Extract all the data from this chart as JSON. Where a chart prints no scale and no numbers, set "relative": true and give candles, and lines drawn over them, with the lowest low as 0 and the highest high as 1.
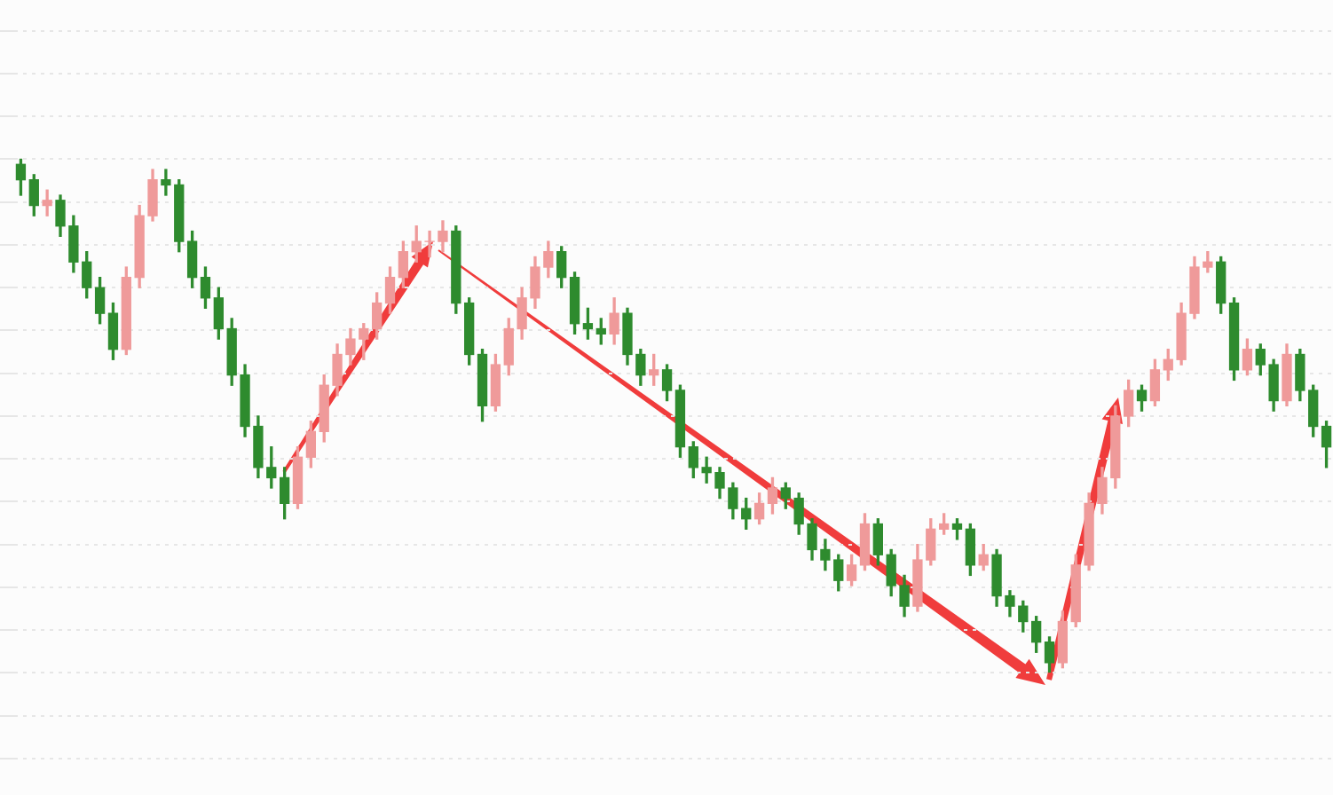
{
  "chart_data": {
    "type": "candlestick",
    "relative": true,
    "grid": "y",
    "categories": [
      null,
      null,
      null,
      null,
      null,
      null,
      null,
      null,
      null,
      null,
      null,
      null,
      null,
      null,
      null,
      null,
      null,
      null,
      null,
      null,
      null,
      null,
      null,
      null,
      null,
      null,
      null,
      null,
      null,
      null,
      null,
      null,
      null,
      null,
      null,
      null,
      null,
      null,
      null,
      null,
      null,
      null,
      null,
      null,
      null,
      null,
      null,
      null,
      null,
      null,
      null,
      null,
      null,
      null,
      null,
      null,
      null,
      null,
      null,
      null,
      null,
      null,
      null,
      null,
      null,
      null,
      null,
      null,
      null,
      null,
      null,
      null,
      null,
      null,
      null,
      null,
      null,
      null,
      null,
      null,
      null,
      null,
      null,
      null,
      null,
      null,
      null,
      null,
      null,
      null,
      null,
      null,
      null,
      null,
      null,
      null,
      null,
      null,
      null,
      null
    ],
    "colors": [
      "#2e8b2e",
      "#2e8b2e",
      "#ef9a9a",
      "#2e8b2e",
      "#2e8b2e",
      "#2e8b2e",
      "#2e8b2e",
      "#2e8b2e",
      "#ef9a9a",
      "#ef9a9a",
      "#ef9a9a",
      "#2e8b2e",
      "#2e8b2e",
      "#2e8b2e",
      "#2e8b2e",
      "#2e8b2e",
      "#2e8b2e",
      "#2e8b2e",
      "#2e8b2e",
      "#2e8b2e",
      "#2e8b2e",
      "#ef9a9a",
      "#ef9a9a",
      "#ef9a9a",
      "#ef9a9a",
      "#ef9a9a",
      "#ef9a9a",
      "#ef9a9a",
      "#ef9a9a",
      "#ef9a9a",
      "#ef9a9a",
      "#ef9a9a",
      "#ef9a9a",
      "#2e8b2e",
      "#2e8b2e",
      "#2e8b2e",
      "#ef9a9a",
      "#ef9a9a",
      "#ef9a9a",
      "#ef9a9a",
      "#ef9a9a",
      "#2e8b2e",
      "#2e8b2e",
      "#2e8b2e",
      "#2e8b2e",
      "#ef9a9a",
      "#2e8b2e",
      "#2e8b2e",
      "#ef9a9a",
      "#2e8b2e",
      "#2e8b2e",
      "#2e8b2e",
      "#2e8b2e",
      "#2e8b2e",
      "#2e8b2e",
      "#2e8b2e",
      "#ef9a9a",
      "#ef9a9a",
      "#2e8b2e",
      "#2e8b2e",
      "#2e8b2e",
      "#2e8b2e",
      "#2e8b2e",
      "#ef9a9a",
      "#ef9a9a",
      "#2e8b2e",
      "#2e8b2e",
      "#2e8b2e",
      "#ef9a9a",
      "#ef9a9a",
      "#ef9a9a",
      "#2e8b2e",
      "#2e8b2e",
      "#ef9a9a",
      "#2e8b2e",
      "#2e8b2e",
      "#2e8b2e",
      "#2e8b2e",
      "#2e8b2e",
      "#ef9a9a",
      "#ef9a9a",
      "#ef9a9a",
      "#ef9a9a",
      "#ef9a9a",
      "#ef9a9a",
      "#2e8b2e",
      "#ef9a9a",
      "#ef9a9a",
      "#ef9a9a",
      "#ef9a9a",
      "#ef9a9a",
      "#2e8b2e",
      "#2e8b2e",
      "#ef9a9a",
      "#2e8b2e",
      "#2e8b2e",
      "#ef9a9a",
      "#2e8b2e",
      "#2e8b2e",
      "#2e8b2e"
    ],
    "ohlc": [
      [
        0.99,
        1.0,
        0.93,
        0.96
      ],
      [
        0.96,
        0.97,
        0.89,
        0.91
      ],
      [
        0.91,
        0.94,
        0.89,
        0.92
      ],
      [
        0.92,
        0.93,
        0.85,
        0.87
      ],
      [
        0.87,
        0.89,
        0.78,
        0.8
      ],
      [
        0.8,
        0.82,
        0.73,
        0.75
      ],
      [
        0.75,
        0.77,
        0.68,
        0.7
      ],
      [
        0.7,
        0.72,
        0.61,
        0.63
      ],
      [
        0.63,
        0.79,
        0.62,
        0.77
      ],
      [
        0.77,
        0.91,
        0.75,
        0.89
      ],
      [
        0.89,
        0.98,
        0.88,
        0.96
      ],
      [
        0.96,
        0.98,
        0.93,
        0.95
      ],
      [
        0.95,
        0.96,
        0.82,
        0.84
      ],
      [
        0.84,
        0.86,
        0.75,
        0.77
      ],
      [
        0.77,
        0.79,
        0.71,
        0.73
      ],
      [
        0.73,
        0.75,
        0.65,
        0.67
      ],
      [
        0.67,
        0.69,
        0.56,
        0.58
      ],
      [
        0.58,
        0.6,
        0.46,
        0.48
      ],
      [
        0.48,
        0.5,
        0.38,
        0.4
      ],
      [
        0.4,
        0.44,
        0.36,
        0.38
      ],
      [
        0.38,
        0.4,
        0.3,
        0.33
      ],
      [
        0.33,
        0.44,
        0.32,
        0.42
      ],
      [
        0.42,
        0.49,
        0.4,
        0.47
      ],
      [
        0.47,
        0.58,
        0.45,
        0.56
      ],
      [
        0.56,
        0.64,
        0.54,
        0.62
      ],
      [
        0.62,
        0.67,
        0.6,
        0.65
      ],
      [
        0.65,
        0.68,
        0.61,
        0.67
      ],
      [
        0.67,
        0.74,
        0.65,
        0.72
      ],
      [
        0.72,
        0.79,
        0.7,
        0.77
      ],
      [
        0.77,
        0.84,
        0.75,
        0.82
      ],
      [
        0.82,
        0.87,
        0.8,
        0.84
      ],
      [
        0.84,
        0.86,
        0.81,
        0.84
      ],
      [
        0.84,
        0.88,
        0.82,
        0.86
      ],
      [
        0.86,
        0.87,
        0.7,
        0.72
      ],
      [
        0.72,
        0.73,
        0.6,
        0.62
      ],
      [
        0.62,
        0.63,
        0.49,
        0.52
      ],
      [
        0.52,
        0.62,
        0.51,
        0.6
      ],
      [
        0.6,
        0.69,
        0.58,
        0.67
      ],
      [
        0.67,
        0.75,
        0.65,
        0.73
      ],
      [
        0.73,
        0.81,
        0.71,
        0.79
      ],
      [
        0.79,
        0.84,
        0.77,
        0.82
      ],
      [
        0.82,
        0.83,
        0.75,
        0.77
      ],
      [
        0.77,
        0.78,
        0.66,
        0.68
      ],
      [
        0.68,
        0.71,
        0.65,
        0.67
      ],
      [
        0.67,
        0.69,
        0.64,
        0.66
      ],
      [
        0.66,
        0.73,
        0.64,
        0.7
      ],
      [
        0.7,
        0.71,
        0.6,
        0.62
      ],
      [
        0.62,
        0.63,
        0.56,
        0.58
      ],
      [
        0.58,
        0.62,
        0.56,
        0.59
      ],
      [
        0.59,
        0.6,
        0.53,
        0.55
      ],
      [
        0.55,
        0.56,
        0.42,
        0.44
      ],
      [
        0.44,
        0.45,
        0.38,
        0.4
      ],
      [
        0.4,
        0.42,
        0.37,
        0.39
      ],
      [
        0.39,
        0.4,
        0.34,
        0.36
      ],
      [
        0.36,
        0.37,
        0.3,
        0.32
      ],
      [
        0.32,
        0.34,
        0.28,
        0.3
      ],
      [
        0.3,
        0.35,
        0.29,
        0.33
      ],
      [
        0.33,
        0.38,
        0.31,
        0.36
      ],
      [
        0.36,
        0.37,
        0.32,
        0.34
      ],
      [
        0.34,
        0.35,
        0.27,
        0.29
      ],
      [
        0.29,
        0.3,
        0.22,
        0.24
      ],
      [
        0.24,
        0.26,
        0.2,
        0.22
      ],
      [
        0.22,
        0.23,
        0.16,
        0.18
      ],
      [
        0.18,
        0.23,
        0.17,
        0.21
      ],
      [
        0.21,
        0.31,
        0.2,
        0.29
      ],
      [
        0.29,
        0.3,
        0.21,
        0.23
      ],
      [
        0.23,
        0.24,
        0.15,
        0.17
      ],
      [
        0.17,
        0.19,
        0.11,
        0.13
      ],
      [
        0.13,
        0.25,
        0.12,
        0.22
      ],
      [
        0.22,
        0.3,
        0.21,
        0.28
      ],
      [
        0.28,
        0.31,
        0.27,
        0.29
      ],
      [
        0.29,
        0.3,
        0.26,
        0.28
      ],
      [
        0.28,
        0.29,
        0.19,
        0.21
      ],
      [
        0.21,
        0.25,
        0.2,
        0.23
      ],
      [
        0.23,
        0.24,
        0.13,
        0.15
      ],
      [
        0.15,
        0.16,
        0.11,
        0.13
      ],
      [
        0.13,
        0.14,
        0.08,
        0.1
      ],
      [
        0.1,
        0.11,
        0.04,
        0.06
      ],
      [
        0.06,
        0.07,
        0.0,
        0.02
      ],
      [
        0.02,
        0.12,
        0.01,
        0.1
      ],
      [
        0.1,
        0.23,
        0.09,
        0.21
      ],
      [
        0.21,
        0.35,
        0.2,
        0.33
      ],
      [
        0.33,
        0.4,
        0.31,
        0.38
      ],
      [
        0.38,
        0.52,
        0.36,
        0.5
      ],
      [
        0.5,
        0.57,
        0.48,
        0.55
      ],
      [
        0.55,
        0.56,
        0.51,
        0.53
      ],
      [
        0.53,
        0.61,
        0.52,
        0.59
      ],
      [
        0.59,
        0.63,
        0.57,
        0.61
      ],
      [
        0.61,
        0.72,
        0.6,
        0.7
      ],
      [
        0.7,
        0.81,
        0.69,
        0.79
      ],
      [
        0.79,
        0.82,
        0.78,
        0.8
      ],
      [
        0.8,
        0.81,
        0.7,
        0.72
      ],
      [
        0.72,
        0.73,
        0.57,
        0.59
      ],
      [
        0.59,
        0.65,
        0.58,
        0.63
      ],
      [
        0.63,
        0.64,
        0.58,
        0.6
      ],
      [
        0.6,
        0.61,
        0.51,
        0.53
      ],
      [
        0.53,
        0.64,
        0.52,
        0.62
      ],
      [
        0.62,
        0.63,
        0.53,
        0.55
      ],
      [
        0.55,
        0.56,
        0.46,
        0.48
      ],
      [
        0.48,
        0.49,
        0.4,
        0.44
      ]
    ]
  }
}
